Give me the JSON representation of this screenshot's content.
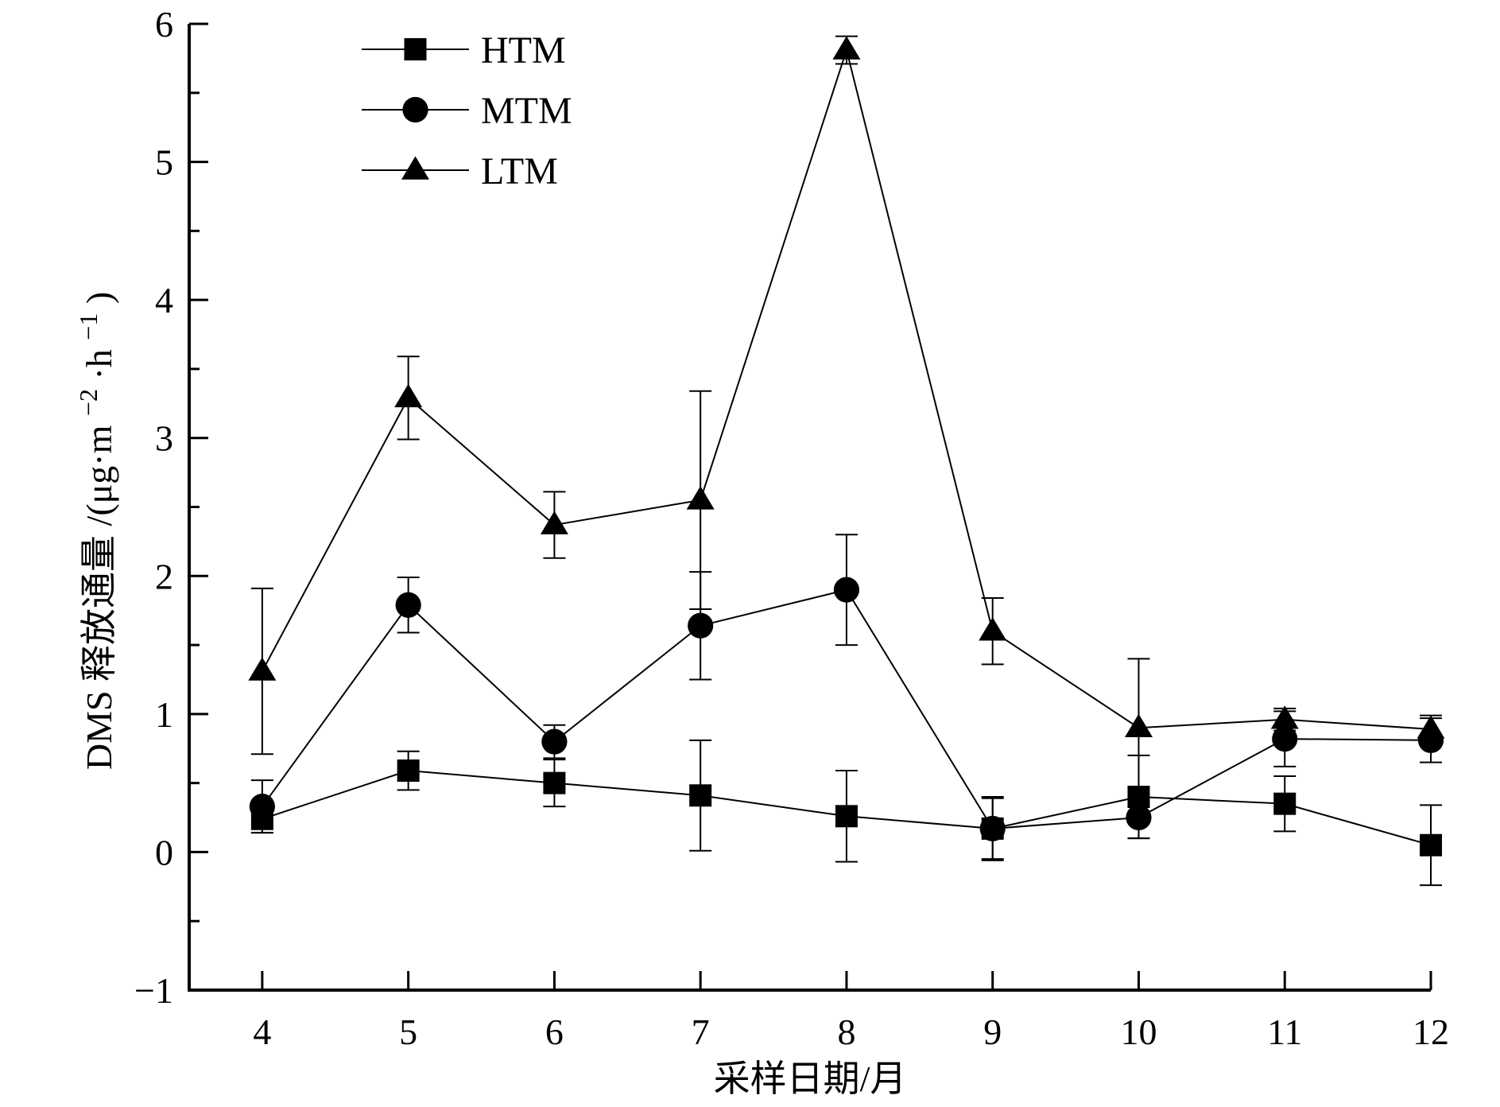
{
  "chart_data": {
    "type": "line",
    "xlabel": "采样日期/月",
    "ylabel_prefix": "DMS 释放通量 /(μg·m",
    "ylabel_sup1": "−2",
    "ylabel_mid": "·h",
    "ylabel_sup2": "−1",
    "ylabel_suffix": ")",
    "x": [
      4,
      5,
      6,
      7,
      8,
      9,
      10,
      11,
      12
    ],
    "xlim": [
      3.5,
      12
    ],
    "ylim": [
      -1,
      6
    ],
    "x_ticks": [
      "4",
      "5",
      "6",
      "7",
      "8",
      "9",
      "10",
      "11",
      "12"
    ],
    "y_ticks": [
      "−1",
      "0",
      "1",
      "2",
      "3",
      "4",
      "5",
      "6"
    ],
    "y_tick_values": [
      -1,
      0,
      1,
      2,
      3,
      4,
      5,
      6
    ],
    "legend_position": "top-left",
    "error_bars": true,
    "series": [
      {
        "name": "HTM",
        "marker": "square",
        "color": "#000000",
        "values": [
          0.24,
          0.59,
          0.5,
          0.41,
          0.26,
          0.17,
          0.4,
          0.35,
          0.05
        ],
        "errors": [
          0.1,
          0.14,
          0.17,
          0.4,
          0.33,
          0.23,
          0.3,
          0.2,
          0.29
        ]
      },
      {
        "name": "MTM",
        "marker": "circle",
        "color": "#000000",
        "values": [
          0.33,
          1.79,
          0.8,
          1.64,
          1.9,
          0.17,
          0.25,
          0.82,
          0.81
        ],
        "errors": [
          0.19,
          0.2,
          0.12,
          0.39,
          0.4,
          0.22,
          0.15,
          0.2,
          0.16
        ]
      },
      {
        "name": "LTM",
        "marker": "triangle",
        "color": "#000000",
        "values": [
          1.31,
          3.29,
          2.37,
          2.55,
          5.81,
          1.6,
          0.9,
          0.96,
          0.89
        ],
        "errors": [
          0.6,
          0.3,
          0.24,
          0.79,
          0.1,
          0.24,
          0.5,
          0.08,
          0.1
        ]
      }
    ]
  }
}
